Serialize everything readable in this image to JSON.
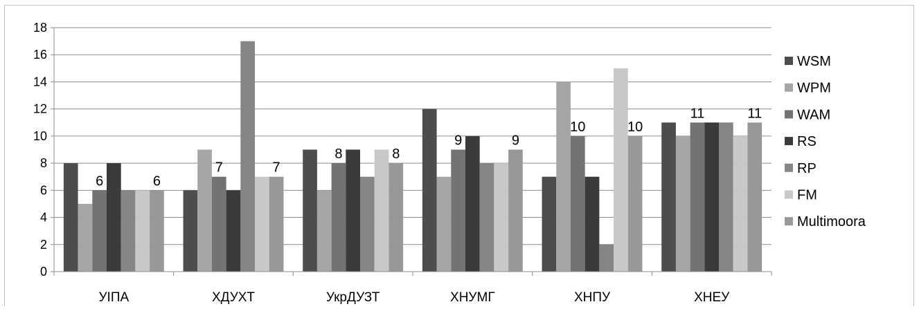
{
  "chart_data": {
    "type": "bar",
    "categories": [
      "УІПА",
      "ХДУХТ",
      "УкрДУЗТ",
      "ХНУМГ",
      "ХНПУ",
      "ХНЕУ"
    ],
    "series": [
      {
        "name": "WSM",
        "color": "#4d4d4d",
        "values": [
          8,
          6,
          9,
          12,
          7,
          11
        ]
      },
      {
        "name": "WPM",
        "color": "#a6a6a6",
        "values": [
          5,
          9,
          6,
          7,
          14,
          10
        ]
      },
      {
        "name": "WAM",
        "color": "#737373",
        "values": [
          6,
          7,
          8,
          9,
          10,
          11
        ]
      },
      {
        "name": "RS",
        "color": "#3a3a3a",
        "values": [
          8,
          6,
          9,
          10,
          7,
          11
        ]
      },
      {
        "name": "RP",
        "color": "#858585",
        "values": [
          6,
          17,
          7,
          8,
          2,
          11
        ]
      },
      {
        "name": "FM",
        "color": "#c8c8c8",
        "values": [
          6,
          7,
          9,
          8,
          15,
          10
        ]
      },
      {
        "name": "Multimoora",
        "color": "#989898",
        "values": [
          6,
          7,
          8,
          9,
          10,
          11
        ]
      }
    ],
    "labeled_series": [
      "WAM",
      "Multimoora"
    ],
    "yticks": [
      "0",
      "2",
      "4",
      "6",
      "8",
      "10",
      "12",
      "14",
      "16",
      "18"
    ],
    "ylim": [
      0,
      18
    ],
    "grid": true,
    "legend_position": "right"
  }
}
